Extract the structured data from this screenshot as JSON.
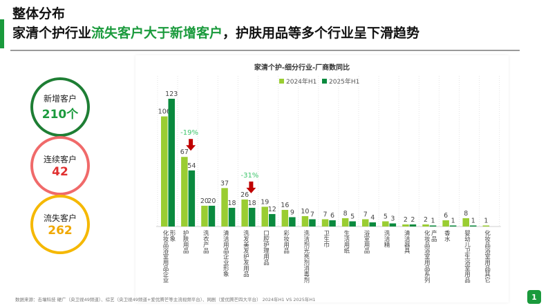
{
  "header": {
    "title": "整体分布",
    "subtitle_pre": "家清个护行业",
    "subtitle_highlight": "流失客户大于新增客户",
    "subtitle_post": "，护肤用品等多个行业呈下滑趋势"
  },
  "summary": [
    {
      "label": "新增客户",
      "value": "210个",
      "color": "#1e7e34",
      "value_color": "#1a9a3c"
    },
    {
      "label": "连续客户",
      "value": "42",
      "color": "#f06a6a",
      "value_color": "#e03030"
    },
    {
      "label": "流失客户",
      "value": "262",
      "color": "#f5b800",
      "value_color": "#f0a800"
    }
  ],
  "chart_data": {
    "type": "bar",
    "title": "家清个护-细分行业-厂商数同比",
    "legend_position": "top-right",
    "grid": "vertical dotted",
    "categories": [
      "化妆品浴室用品企业形象",
      "护肤用品",
      "洗衣产品",
      "清洁用品企业形象",
      "洗发美发护发用品",
      "口腔护理用品",
      "彩妆用品",
      "洗洁剂光亮剂消毒剂",
      "卫生巾",
      "生活用纸",
      "浴室用品",
      "洗洁精",
      "清洁器具",
      "化妆品浴室用品系列产品",
      "香水",
      "婴幼儿卫生浴室用品",
      "化妆品浴室用品其它"
    ],
    "series": [
      {
        "name": "2024年H1",
        "color": "#9acd32",
        "values": [
          106,
          67,
          20,
          37,
          26,
          19,
          16,
          10,
          7,
          8,
          7,
          5,
          2,
          2,
          6,
          8,
          1
        ]
      },
      {
        "name": "2025年H1",
        "color": "#0a8a3e",
        "values": [
          123,
          54,
          20,
          18,
          18,
          12,
          9,
          7,
          6,
          5,
          4,
          3,
          2,
          1,
          1,
          1,
          null
        ]
      }
    ],
    "annotations": [
      {
        "category": "护肤用品",
        "text": "-19%",
        "arrow": "down",
        "text_color": "#3cc46a",
        "arrow_color": "#c00000"
      },
      {
        "category": "洗发美发护发用品",
        "text": "-31%",
        "arrow": "down",
        "text_color": "#3cc46a",
        "arrow_color": "#c00000"
      }
    ]
  },
  "footnote": "数据来源：击壤科技 硬广（央卫视49频道）、综艺（央卫视49频道+爱优腾芒等主流视频平台）、网剧（爱优腾芒四大平台） 2024年H1 VS 2025年H1",
  "page_number": "1"
}
